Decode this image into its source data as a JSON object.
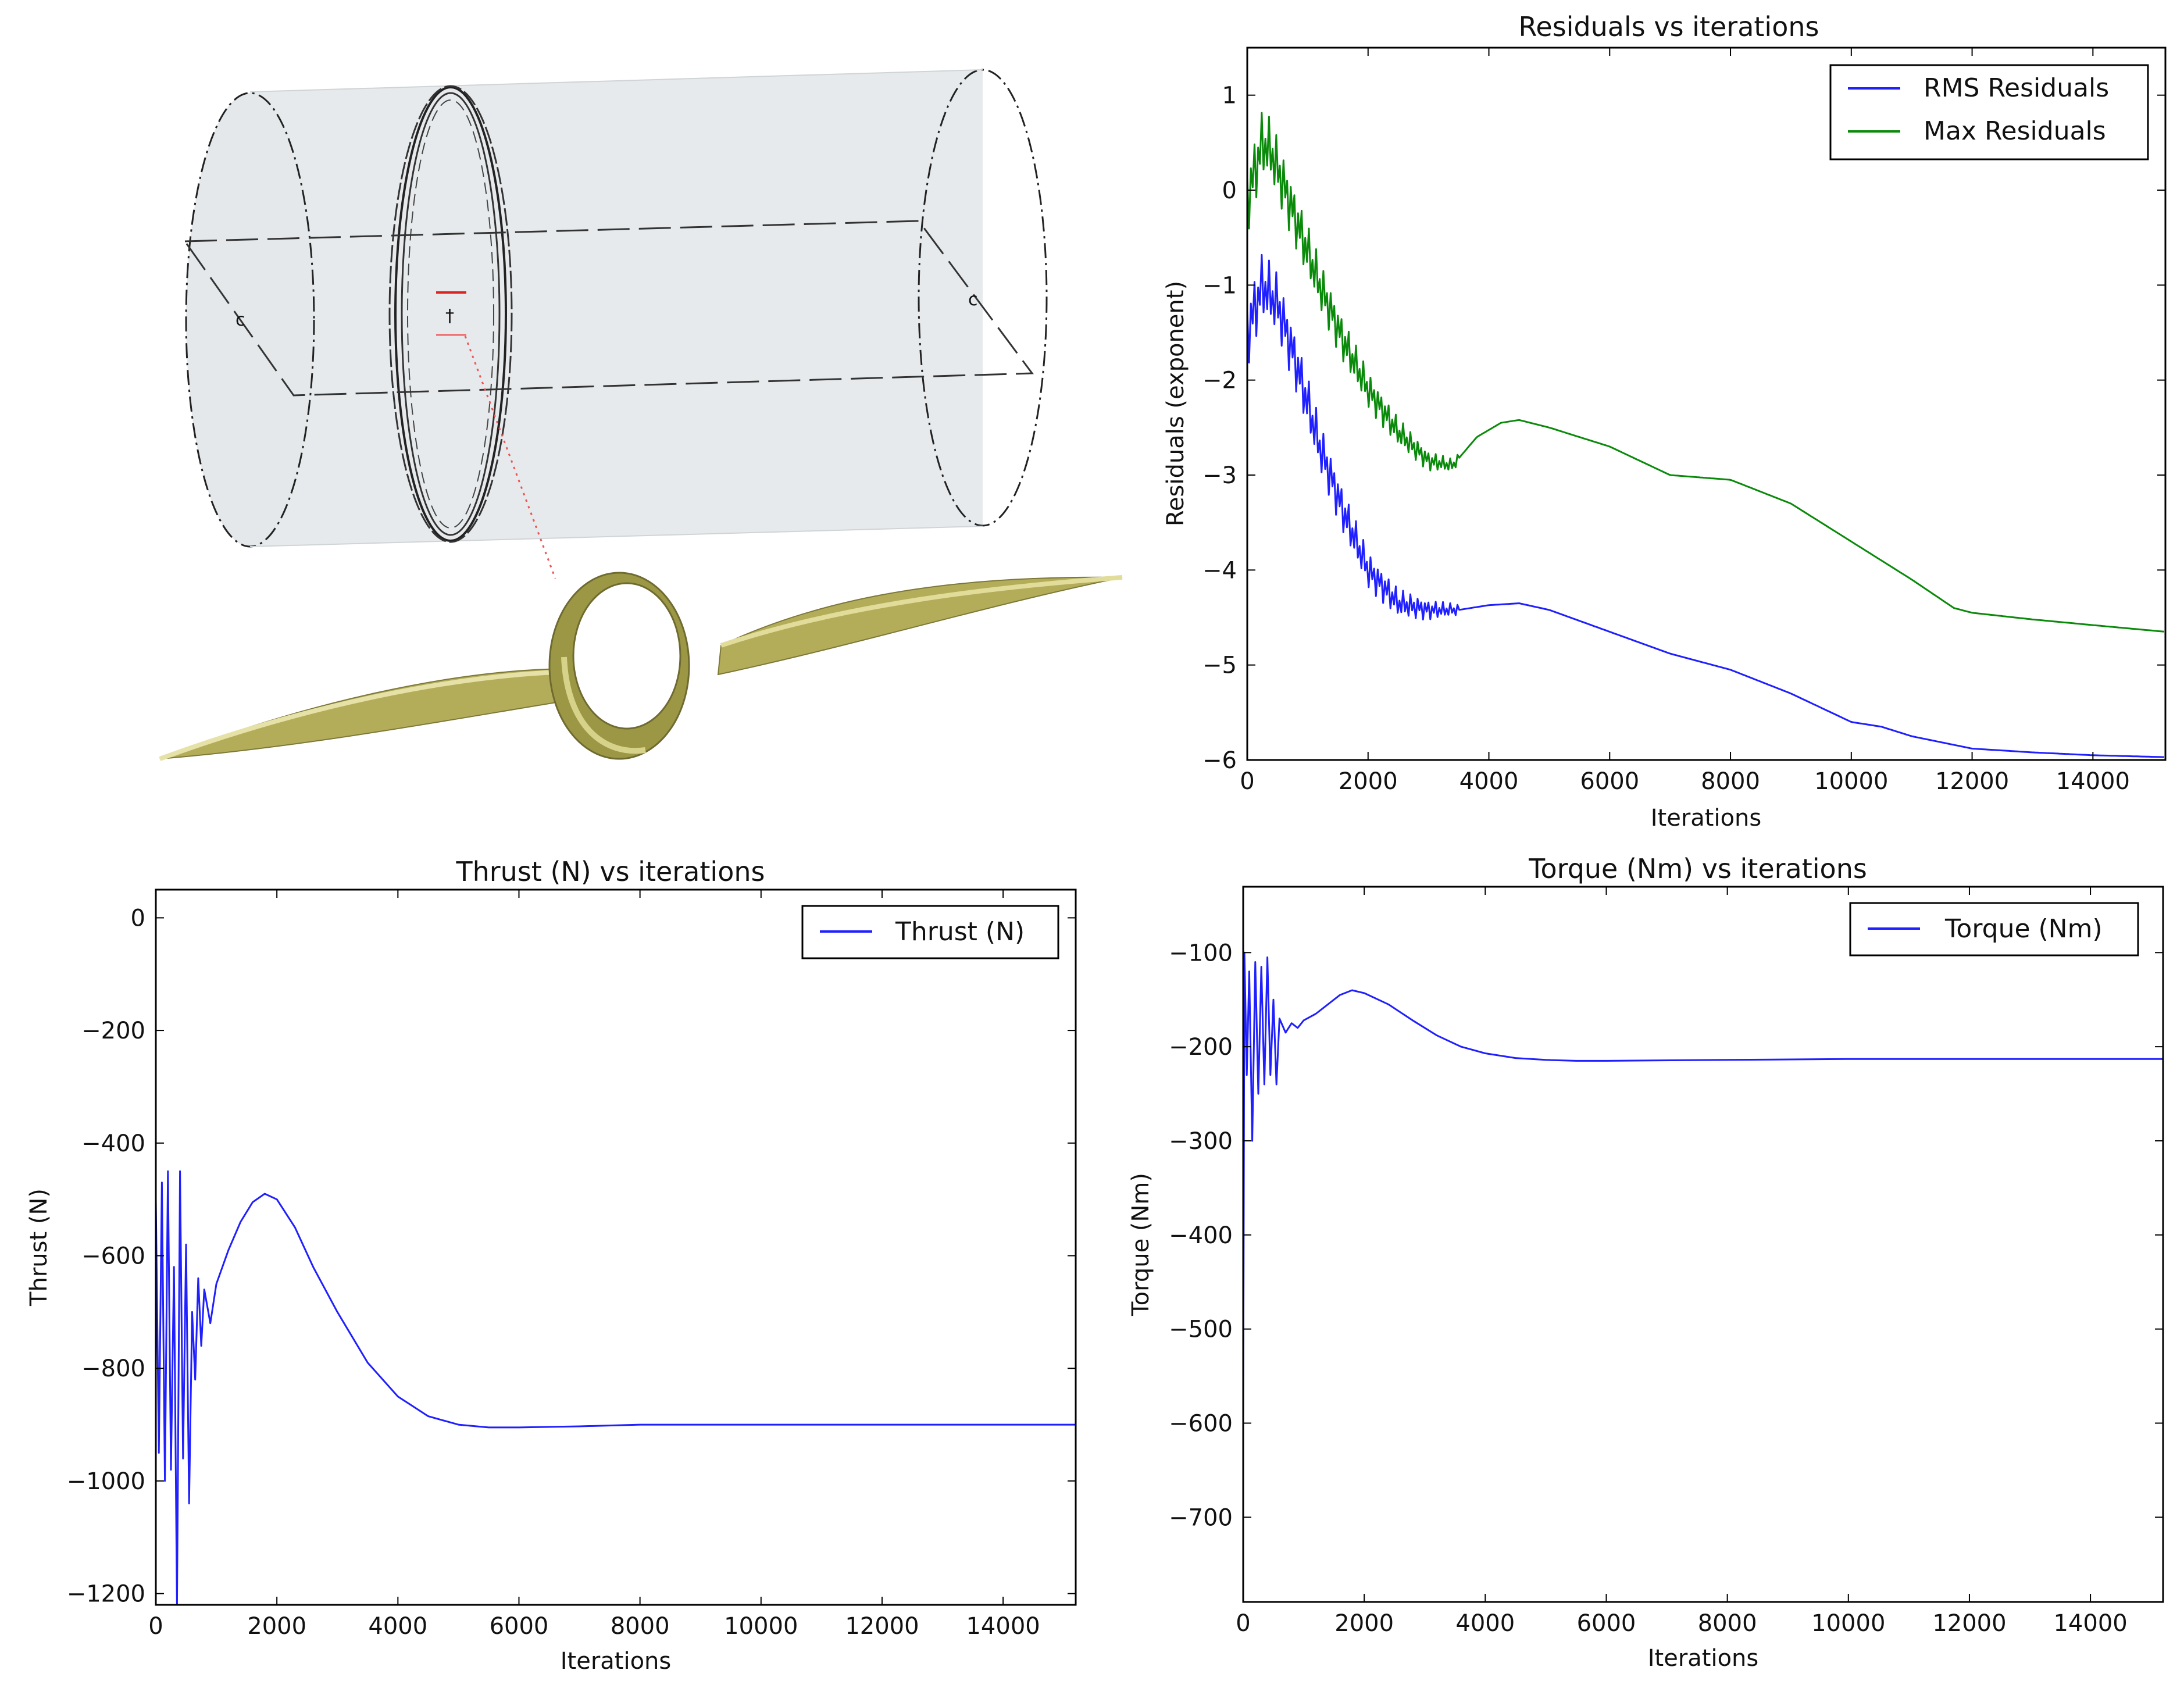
{
  "colors": {
    "blue": "#1f1fff",
    "green": "#0a8a0a",
    "axis": "#000000",
    "surface": "#e7eaec",
    "blade": "#b3ad5a"
  },
  "chart_data": [
    {
      "id": "residuals",
      "type": "line",
      "title": "Residuals vs iterations",
      "xlabel": "Iterations",
      "ylabel": "Residuals (exponent)",
      "xlim": [
        0,
        15200
      ],
      "ylim": [
        -6,
        1.5
      ],
      "xticks": [
        0,
        2000,
        4000,
        6000,
        8000,
        10000,
        12000,
        14000
      ],
      "yticks": [
        1,
        0,
        -1,
        -2,
        -3,
        -4,
        -5,
        -6
      ],
      "ytick_labels": [
        "1",
        "0",
        "−1",
        "−2",
        "−3",
        "−4",
        "−5",
        "−6"
      ],
      "legend": "top-right",
      "series": [
        {
          "name": "RMS Residuals",
          "color": "#1f1fff",
          "noise_until": 3500,
          "x": [
            0,
            250,
            500,
            800,
            1200,
            1600,
            2000,
            2500,
            3000,
            3500,
            4000,
            4500,
            5000,
            6000,
            7000,
            8000,
            9000,
            10000,
            10500,
            11000,
            12000,
            13000,
            14000,
            15200
          ],
          "y": [
            -1.5,
            -1.0,
            -1.2,
            -1.8,
            -2.7,
            -3.4,
            -4.0,
            -4.35,
            -4.42,
            -4.42,
            -4.37,
            -4.35,
            -4.42,
            -4.65,
            -4.88,
            -5.05,
            -5.3,
            -5.6,
            -5.65,
            -5.75,
            -5.88,
            -5.92,
            -5.95,
            -5.97
          ]
        },
        {
          "name": "Max Residuals",
          "color": "#0a8a0a",
          "noise_until": 3500,
          "x": [
            0,
            250,
            400,
            800,
            1200,
            1600,
            2000,
            2500,
            3000,
            3400,
            3800,
            4200,
            4500,
            5000,
            6000,
            7000,
            8000,
            9000,
            10000,
            11000,
            11700,
            12000,
            13000,
            14000,
            15200
          ],
          "y": [
            -0.1,
            0.5,
            0.4,
            -0.3,
            -1.0,
            -1.6,
            -2.1,
            -2.55,
            -2.85,
            -2.9,
            -2.6,
            -2.45,
            -2.42,
            -2.5,
            -2.7,
            -3.0,
            -3.05,
            -3.3,
            -3.7,
            -4.1,
            -4.4,
            -4.45,
            -4.52,
            -4.58,
            -4.65
          ]
        }
      ]
    },
    {
      "id": "thrust",
      "type": "line",
      "title": "Thrust (N) vs iterations",
      "xlabel": "Iterations",
      "ylabel": "Thrust (N)",
      "xlim": [
        0,
        15200
      ],
      "ylim": [
        -1220,
        50
      ],
      "xticks": [
        0,
        2000,
        4000,
        6000,
        8000,
        10000,
        12000,
        14000
      ],
      "yticks": [
        0,
        -200,
        -400,
        -600,
        -800,
        -1000,
        -1200
      ],
      "ytick_labels": [
        "0",
        "−200",
        "−400",
        "−600",
        "−800",
        "−1000",
        "−1200"
      ],
      "legend": "top-right",
      "series": [
        {
          "name": "Thrust (N)",
          "color": "#1f1fff",
          "x": [
            0,
            50,
            100,
            150,
            200,
            250,
            300,
            350,
            400,
            450,
            500,
            550,
            600,
            650,
            700,
            750,
            800,
            900,
            1000,
            1200,
            1400,
            1600,
            1800,
            2000,
            2300,
            2600,
            3000,
            3500,
            4000,
            4500,
            5000,
            5500,
            6000,
            7000,
            8000,
            9000,
            10000,
            12000,
            15200
          ],
          "y": [
            -500,
            -950,
            -470,
            -1000,
            -450,
            -980,
            -620,
            -1220,
            -450,
            -960,
            -580,
            -1040,
            -700,
            -820,
            -640,
            -760,
            -660,
            -720,
            -650,
            -590,
            -540,
            -505,
            -490,
            -500,
            -550,
            -620,
            -700,
            -790,
            -850,
            -885,
            -900,
            -905,
            -905,
            -903,
            -900,
            -900,
            -900,
            -900,
            -900
          ]
        }
      ]
    },
    {
      "id": "torque",
      "type": "line",
      "title": "Torque (Nm) vs iterations",
      "xlabel": "Iterations",
      "ylabel": "Torque (Nm)",
      "xlim": [
        0,
        15200
      ],
      "ylim": [
        -790,
        -30
      ],
      "xticks": [
        0,
        2000,
        4000,
        6000,
        8000,
        10000,
        12000,
        14000
      ],
      "yticks": [
        -100,
        -200,
        -300,
        -400,
        -500,
        -600,
        -700
      ],
      "ytick_labels": [
        "−100",
        "−200",
        "−300",
        "−400",
        "−500",
        "−600",
        "−700"
      ],
      "legend": "top-right",
      "series": [
        {
          "name": "Torque (Nm)",
          "color": "#1f1fff",
          "x": [
            0,
            20,
            60,
            100,
            150,
            200,
            250,
            300,
            350,
            400,
            450,
            500,
            550,
            600,
            700,
            800,
            900,
            1000,
            1200,
            1400,
            1600,
            1800,
            2000,
            2400,
            2800,
            3200,
            3600,
            4000,
            4500,
            5000,
            5500,
            6000,
            8000,
            10000,
            12000,
            15200
          ],
          "y": [
            -600,
            -100,
            -230,
            -120,
            -300,
            -110,
            -250,
            -115,
            -240,
            -105,
            -230,
            -150,
            -240,
            -170,
            -185,
            -175,
            -180,
            -172,
            -165,
            -155,
            -145,
            -140,
            -143,
            -155,
            -172,
            -188,
            -200,
            -207,
            -212,
            -214,
            -215,
            -215,
            -214,
            -213,
            -213,
            -213
          ]
        }
      ]
    }
  ]
}
